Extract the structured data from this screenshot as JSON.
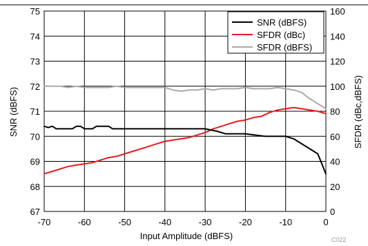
{
  "chart_data": {
    "type": "line",
    "xlabel": "Input Amplitude (dBFS)",
    "ylabel_left": "SNR (dBFS)",
    "ylabel_right": "SFDR (dBc,dBFS)",
    "xlim": [
      -70,
      0
    ],
    "ylim_left": [
      67,
      75
    ],
    "ylim_right": [
      0,
      160
    ],
    "x_ticks": [
      -70,
      -60,
      -50,
      -40,
      -30,
      -20,
      -10,
      0
    ],
    "y_ticks_left": [
      67,
      68,
      69,
      70,
      71,
      72,
      73,
      74,
      75
    ],
    "y_ticks_right": [
      0,
      20,
      40,
      60,
      80,
      100,
      120,
      140,
      160
    ],
    "grid": true,
    "legend_position": "top-right",
    "figure_code": "C022",
    "series": [
      {
        "name": "SNR (dBFS)",
        "axis": "left",
        "color": "#000000",
        "x": [
          -70,
          -69,
          -68,
          -67,
          -66,
          -65,
          -64,
          -63,
          -62,
          -61,
          -60,
          -59,
          -58,
          -57,
          -56,
          -55,
          -54,
          -53,
          -52,
          -51,
          -50,
          -45,
          -40,
          -35,
          -30,
          -27,
          -25,
          -20,
          -15,
          -12,
          -10,
          -8,
          -6,
          -4,
          -2,
          0
        ],
        "y": [
          70.4,
          70.35,
          70.4,
          70.3,
          70.3,
          70.3,
          70.3,
          70.3,
          70.4,
          70.4,
          70.3,
          70.3,
          70.3,
          70.4,
          70.4,
          70.4,
          70.4,
          70.3,
          70.3,
          70.3,
          70.3,
          70.3,
          70.3,
          70.3,
          70.3,
          70.2,
          70.1,
          70.1,
          70.0,
          70.0,
          70.0,
          69.9,
          69.7,
          69.5,
          69.3,
          68.5
        ]
      },
      {
        "name": "SFDR (dBc)",
        "axis": "right",
        "color": "#e8191c",
        "x": [
          -70,
          -68,
          -66,
          -64,
          -62,
          -60,
          -58,
          -56,
          -54,
          -52,
          -50,
          -48,
          -46,
          -44,
          -42,
          -40,
          -38,
          -36,
          -34,
          -32,
          -30,
          -28,
          -26,
          -24,
          -22,
          -20,
          -18,
          -16,
          -14,
          -12,
          -10,
          -8,
          -6,
          -4,
          -2,
          0
        ],
        "y": [
          30,
          32,
          34,
          36,
          37,
          38,
          39,
          41,
          43,
          44,
          46,
          48,
          50,
          52,
          54,
          56,
          57,
          58,
          59,
          61,
          63,
          66,
          68,
          70,
          72,
          73,
          75,
          76,
          79,
          81,
          82,
          83,
          82,
          81,
          80,
          78
        ]
      },
      {
        "name": "SFDR (dBFS)",
        "axis": "right",
        "color": "#aaaaaa",
        "x": [
          -70,
          -68,
          -66,
          -64,
          -62,
          -60,
          -58,
          -56,
          -54,
          -52,
          -50,
          -48,
          -46,
          -44,
          -42,
          -40,
          -38,
          -36,
          -34,
          -32,
          -30,
          -28,
          -26,
          -24,
          -22,
          -20,
          -18,
          -16,
          -14,
          -12,
          -10,
          -8,
          -6,
          -4,
          -2,
          0
        ],
        "y": [
          100,
          100,
          100,
          99,
          100,
          99,
          99,
          99,
          99,
          100,
          99,
          99,
          99,
          99,
          99,
          99,
          97,
          96,
          97,
          97,
          98,
          97,
          98,
          98,
          98,
          99,
          98,
          98,
          98,
          99,
          98,
          97,
          95,
          90,
          86,
          82
        ]
      }
    ]
  }
}
